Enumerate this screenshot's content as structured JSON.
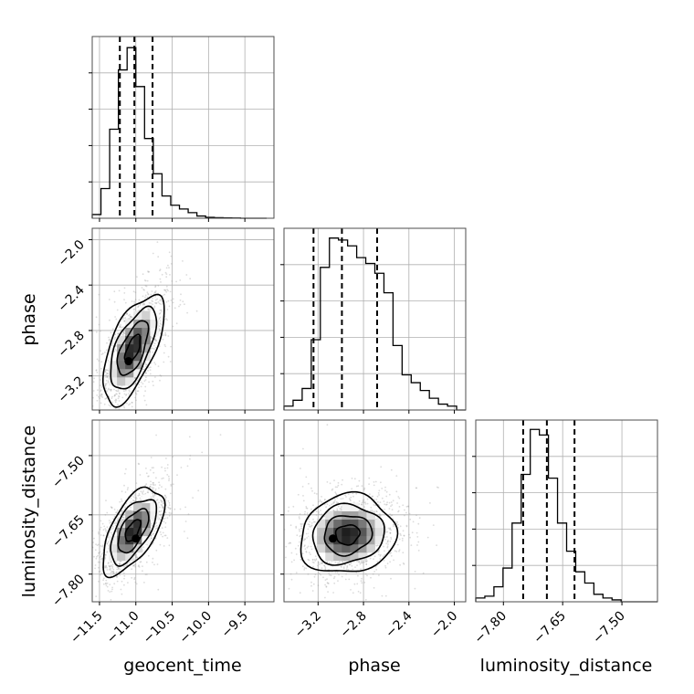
{
  "chart_data": {
    "type": "corner",
    "parameters": [
      "geocent_time",
      "phase",
      "luminosity_distance"
    ],
    "grid": true,
    "ranges": {
      "geocent_time": [
        -11.6,
        -9.1
      ],
      "phase": [
        -3.5,
        -1.9
      ],
      "luminosity_distance": [
        -7.87,
        -7.41
      ]
    },
    "ticks": {
      "geocent_time": [
        -11.5,
        -11.0,
        -10.5,
        -10.0,
        -9.5
      ],
      "phase": [
        -3.2,
        -2.8,
        -2.4,
        -2.0
      ],
      "luminosity_distance": [
        -7.8,
        -7.65,
        -7.5
      ]
    },
    "tick_labels": {
      "geocent_time": [
        "−11.5",
        "−11.0",
        "−10.5",
        "−10.0",
        "−9.5"
      ],
      "phase": [
        "−3.2",
        "−2.8",
        "−2.4",
        "−2.0"
      ],
      "luminosity_distance": [
        "−7.80",
        "−7.65",
        "−7.50"
      ]
    },
    "quantiles": {
      "geocent_time": [
        -11.22,
        -11.02,
        -10.77
      ],
      "phase": [
        -3.24,
        -2.99,
        -2.68
      ],
      "luminosity_distance": [
        -7.75,
        -7.69,
        -7.62
      ]
    },
    "histograms": {
      "geocent_time": {
        "edges": [
          -11.6,
          -11.48,
          -11.36,
          -11.24,
          -11.12,
          -11.0,
          -10.88,
          -10.76,
          -10.64,
          -10.52,
          -10.4,
          -10.28,
          -10.16,
          -10.04,
          -9.92,
          -9.8,
          -9.68,
          -9.56,
          -9.44,
          -9.32,
          -9.2
        ],
        "counts": [
          0.02,
          0.16,
          0.48,
          0.8,
          0.92,
          0.71,
          0.43,
          0.24,
          0.12,
          0.07,
          0.05,
          0.03,
          0.012,
          0.005,
          0.003,
          0.002,
          0.001,
          0.0,
          0.0,
          0.0
        ],
        "ymax": 0.98
      },
      "phase": {
        "edges": [
          -3.5,
          -3.42,
          -3.34,
          -3.26,
          -3.18,
          -3.1,
          -3.02,
          -2.94,
          -2.86,
          -2.78,
          -2.7,
          -2.62,
          -2.54,
          -2.46,
          -2.38,
          -2.3,
          -2.22,
          -2.14,
          -2.06,
          -1.98,
          -1.9
        ],
        "counts": [
          0.02,
          0.05,
          0.11,
          0.36,
          0.73,
          0.88,
          0.87,
          0.84,
          0.78,
          0.75,
          0.7,
          0.6,
          0.33,
          0.18,
          0.14,
          0.1,
          0.06,
          0.03,
          0.02,
          0.0
        ],
        "ymax": 0.93
      },
      "luminosity_distance": {
        "edges": [
          -7.87,
          -7.847,
          -7.824,
          -7.801,
          -7.778,
          -7.755,
          -7.732,
          -7.709,
          -7.686,
          -7.663,
          -7.64,
          -7.617,
          -7.594,
          -7.571,
          -7.548,
          -7.525,
          -7.502,
          -7.479,
          -7.456,
          -7.433,
          -7.41
        ],
        "counts": [
          0.02,
          0.03,
          0.08,
          0.18,
          0.42,
          0.68,
          0.92,
          0.89,
          0.66,
          0.42,
          0.27,
          0.16,
          0.1,
          0.04,
          0.02,
          0.01,
          0.0,
          0.0,
          0.0,
          0.0
        ],
        "ymax": 0.97
      }
    },
    "pairs": [
      {
        "x": "geocent_time",
        "y": "phase",
        "center": [
          -11.04,
          -2.96
        ],
        "sigma": [
          0.21,
          0.24
        ],
        "rho": 0.62,
        "peak": [
          -11.1,
          -3.07
        ]
      },
      {
        "x": "geocent_time",
        "y": "luminosity_distance",
        "center": [
          -11.04,
          -7.69
        ],
        "sigma": [
          0.21,
          0.055
        ],
        "rho": 0.6,
        "peak": [
          -11.0,
          -7.71
        ]
      },
      {
        "x": "phase",
        "y": "luminosity_distance",
        "center": [
          -2.94,
          -7.7
        ],
        "sigma": [
          0.21,
          0.05
        ],
        "rho": 0.1,
        "peak": [
          -3.07,
          -7.71
        ]
      }
    ]
  }
}
